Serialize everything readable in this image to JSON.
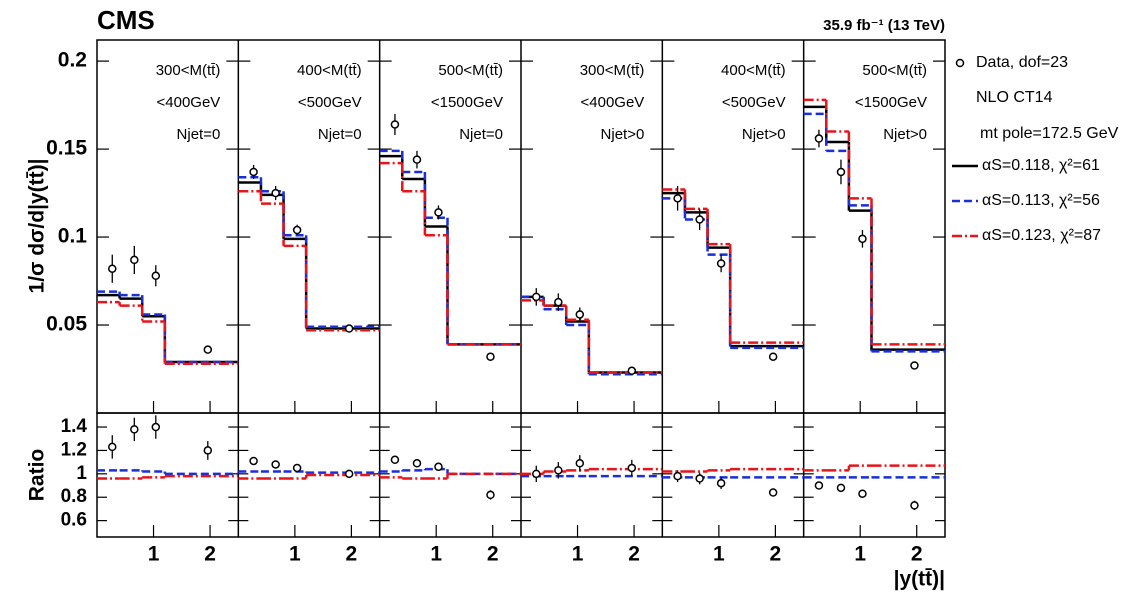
{
  "chart_data": {
    "type": "step",
    "title": "CMS",
    "subtitle": "35.9 fb⁻¹ (13 TeV)",
    "y_label": "1/σ dσ/d|y(tt̄)|",
    "ratio_label": "Ratio",
    "x_label": "|y(tt̄)|",
    "xlim": [
      0,
      2.5
    ],
    "xticks": [
      1,
      2
    ],
    "bins": [
      0,
      0.4,
      0.8,
      1.2,
      2.5
    ],
    "data_x": [
      0.27,
      0.66,
      1.04,
      1.96
    ],
    "ylim": [
      0,
      0.212
    ],
    "yticks": [
      0.05,
      0.1,
      0.15,
      0.2
    ],
    "ratio_ylim": [
      0.46,
      1.52
    ],
    "ratio_yticks": [
      0.6,
      0.8,
      1,
      1.2,
      1.4
    ],
    "legend": {
      "title": "NLO CT14",
      "note": "mt pole=172.5 GeV"
    },
    "panels": [
      {
        "labels": [
          "300<M(tt̄)",
          "<400GeV",
          "Njet=0"
        ]
      },
      {
        "labels": [
          "400<M(tt̄)",
          "<500GeV",
          "Njet=0"
        ]
      },
      {
        "labels": [
          "500<M(tt̄)",
          "<1500GeV",
          "Njet=0"
        ]
      },
      {
        "labels": [
          "300<M(tt̄)",
          "<400GeV",
          "Njet>0"
        ]
      },
      {
        "labels": [
          "400<M(tt̄)",
          "<500GeV",
          "Njet>0"
        ]
      },
      {
        "labels": [
          "500<M(tt̄)",
          "<1500GeV",
          "Njet>0"
        ]
      }
    ],
    "data": {
      "name": "Data, dof=23",
      "color": "#000000",
      "values": [
        [
          0.082,
          0.087,
          0.078,
          0.036
        ],
        [
          0.137,
          0.125,
          0.104,
          0.048
        ],
        [
          0.164,
          0.144,
          0.114,
          0.032
        ],
        [
          0.066,
          0.063,
          0.056,
          0.024
        ],
        [
          0.122,
          0.11,
          0.085,
          0.032
        ],
        [
          0.156,
          0.137,
          0.099,
          0.027
        ]
      ],
      "errors": [
        [
          0.008,
          0.008,
          0.006,
          0.002
        ],
        [
          0.004,
          0.004,
          0.003,
          0.001
        ],
        [
          0.006,
          0.005,
          0.004,
          0.001
        ],
        [
          0.005,
          0.005,
          0.004,
          0.001
        ],
        [
          0.007,
          0.006,
          0.005,
          0.001
        ],
        [
          0.005,
          0.007,
          0.005,
          0.001
        ]
      ],
      "ratio": [
        [
          1.23,
          1.38,
          1.4,
          1.2
        ],
        [
          1.11,
          1.08,
          1.05,
          1.0
        ],
        [
          1.12,
          1.09,
          1.06,
          0.82
        ],
        [
          1.0,
          1.03,
          1.09,
          1.05
        ],
        [
          0.98,
          0.96,
          0.92,
          0.84
        ],
        [
          0.9,
          0.88,
          0.83,
          0.73
        ]
      ],
      "ratio_errors": [
        [
          0.1,
          0.1,
          0.1,
          0.08
        ],
        [
          0.03,
          0.03,
          0.03,
          0.02
        ],
        [
          0.03,
          0.03,
          0.03,
          0.04
        ],
        [
          0.07,
          0.07,
          0.07,
          0.07
        ],
        [
          0.05,
          0.05,
          0.05,
          0.03
        ],
        [
          0.03,
          0.03,
          0.03,
          0.04
        ]
      ]
    },
    "series": [
      {
        "name": "αS=0.118, χ²=61",
        "color": "#000000",
        "dash": "none",
        "values": [
          [
            0.067,
            0.065,
            0.055,
            0.029
          ],
          [
            0.131,
            0.124,
            0.099,
            0.048
          ],
          [
            0.146,
            0.133,
            0.106,
            0.039
          ],
          [
            0.066,
            0.061,
            0.052,
            0.023
          ],
          [
            0.125,
            0.114,
            0.094,
            0.038
          ],
          [
            0.174,
            0.154,
            0.115,
            0.036
          ]
        ]
      },
      {
        "name": "αS=0.113, χ²=56",
        "color": "#1a2fd8",
        "dash": "8,4",
        "values": [
          [
            0.069,
            0.067,
            0.056,
            0.029
          ],
          [
            0.134,
            0.126,
            0.101,
            0.049
          ],
          [
            0.149,
            0.137,
            0.111,
            0.039
          ],
          [
            0.066,
            0.059,
            0.05,
            0.022
          ],
          [
            0.122,
            0.11,
            0.09,
            0.037
          ],
          [
            0.17,
            0.149,
            0.118,
            0.035
          ]
        ],
        "ratio": [
          [
            1.03,
            1.03,
            1.02,
            1.0
          ],
          [
            1.02,
            1.02,
            1.02,
            1.01
          ],
          [
            1.02,
            1.03,
            1.04,
            1.0
          ],
          [
            0.98,
            0.98,
            0.98,
            0.98
          ],
          [
            0.97,
            0.97,
            0.97,
            0.97
          ],
          [
            0.97,
            0.97,
            0.97,
            0.97
          ]
        ]
      },
      {
        "name": "αS=0.123, χ²=87",
        "color": "#e8141a",
        "dash": "10,3,2,3",
        "values": [
          [
            0.063,
            0.061,
            0.052,
            0.028
          ],
          [
            0.126,
            0.119,
            0.095,
            0.047
          ],
          [
            0.142,
            0.126,
            0.101,
            0.039
          ],
          [
            0.064,
            0.061,
            0.053,
            0.023
          ],
          [
            0.127,
            0.116,
            0.096,
            0.04
          ],
          [
            0.178,
            0.16,
            0.122,
            0.039
          ]
        ],
        "ratio": [
          [
            0.96,
            0.96,
            0.97,
            0.98
          ],
          [
            0.96,
            0.96,
            0.96,
            0.99
          ],
          [
            0.97,
            0.96,
            0.96,
            1.0
          ],
          [
            1.0,
            1.02,
            1.03,
            1.04
          ],
          [
            1.02,
            1.02,
            1.03,
            1.04
          ],
          [
            1.03,
            1.03,
            1.07,
            1.07
          ]
        ]
      }
    ]
  }
}
